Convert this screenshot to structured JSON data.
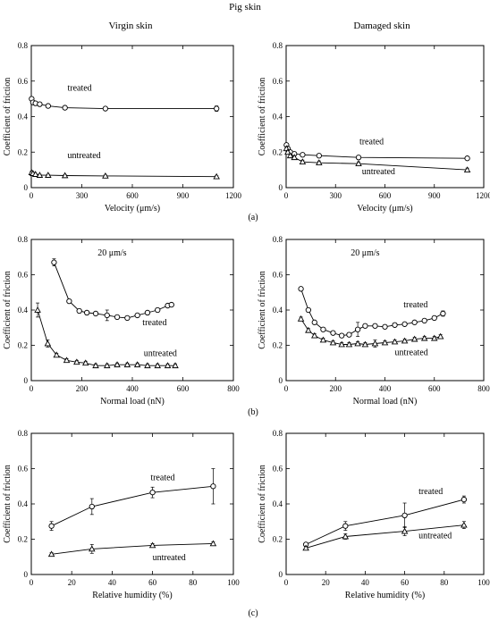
{
  "figure": {
    "title": "Pig skin",
    "column_titles": [
      "Virgin skin",
      "Damaged skin"
    ],
    "row_labels": [
      "(a)",
      "(b)",
      "(c)"
    ]
  },
  "chart_data": [
    {
      "id": "a-left",
      "type": "line",
      "row": 0,
      "col": 0,
      "xlabel": "Velocity (μm/s)",
      "ylabel": "Coefficient of friction",
      "xlim": [
        0,
        1200
      ],
      "ylim": [
        0,
        0.8
      ],
      "xticks": [
        0,
        300,
        600,
        900,
        1200
      ],
      "yticks": [
        0,
        0.2,
        0.4,
        0.6,
        0.8
      ],
      "annotation": "",
      "series": [
        {
          "label": "treated",
          "marker": "circle",
          "x": [
            2,
            10,
            25,
            50,
            100,
            200,
            440,
            1100
          ],
          "y": [
            0.5,
            0.48,
            0.475,
            0.47,
            0.46,
            0.45,
            0.445,
            0.445
          ],
          "err": [
            0.01,
            0.01,
            0.01,
            0.01,
            0.01,
            0.01,
            0.01,
            0.015
          ],
          "label_at": [
            215,
            0.545
          ]
        },
        {
          "label": "untreated",
          "marker": "triangle",
          "x": [
            2,
            10,
            25,
            50,
            100,
            200,
            440,
            1100
          ],
          "y": [
            0.085,
            0.08,
            0.075,
            0.07,
            0.07,
            0.068,
            0.066,
            0.062
          ],
          "err": [
            0.008,
            0.006,
            0.005,
            0.005,
            0.005,
            0.005,
            0.005,
            0.005
          ],
          "label_at": [
            215,
            0.165
          ]
        }
      ]
    },
    {
      "id": "a-right",
      "type": "line",
      "row": 0,
      "col": 1,
      "xlabel": "Velocity (μm/s)",
      "ylabel": "Coefficient of friction",
      "xlim": [
        0,
        1200
      ],
      "ylim": [
        0,
        0.8
      ],
      "xticks": [
        0,
        300,
        600,
        900,
        1200
      ],
      "yticks": [
        0,
        0.2,
        0.4,
        0.6,
        0.8
      ],
      "annotation": "",
      "series": [
        {
          "label": "treated",
          "marker": "circle",
          "x": [
            2,
            10,
            25,
            50,
            100,
            200,
            440,
            1100
          ],
          "y": [
            0.24,
            0.22,
            0.2,
            0.19,
            0.185,
            0.18,
            0.17,
            0.165
          ],
          "err": [
            0.01,
            0.01,
            0.01,
            0.01,
            0.01,
            0.01,
            0.01,
            0.01
          ],
          "label_at": [
            445,
            0.245
          ]
        },
        {
          "label": "untreated",
          "marker": "triangle",
          "x": [
            2,
            10,
            25,
            50,
            100,
            200,
            440,
            1100
          ],
          "y": [
            0.22,
            0.2,
            0.18,
            0.17,
            0.145,
            0.14,
            0.135,
            0.1
          ],
          "err": [
            0.01,
            0.01,
            0.01,
            0.01,
            0.01,
            0.01,
            0.01,
            0.01
          ],
          "label_at": [
            460,
            0.075
          ]
        }
      ]
    },
    {
      "id": "b-left",
      "type": "line",
      "row": 1,
      "col": 0,
      "xlabel": "Normal load (nN)",
      "ylabel": "Coefficient of friction",
      "xlim": [
        0,
        800
      ],
      "ylim": [
        0,
        0.8
      ],
      "xticks": [
        0,
        200,
        400,
        600,
        800
      ],
      "yticks": [
        0,
        0.2,
        0.4,
        0.6,
        0.8
      ],
      "annotation": "20 μm/s",
      "series": [
        {
          "label": "treated",
          "marker": "circle",
          "x": [
            90,
            150,
            190,
            220,
            255,
            300,
            340,
            380,
            420,
            460,
            500,
            540,
            555
          ],
          "y": [
            0.67,
            0.45,
            0.395,
            0.385,
            0.38,
            0.37,
            0.36,
            0.355,
            0.37,
            0.385,
            0.4,
            0.425,
            0.43
          ],
          "err": [
            0.02,
            0.01,
            0.01,
            0.01,
            0.01,
            0.03,
            0.01,
            0.01,
            0.01,
            0.01,
            0.01,
            0.01,
            0.01
          ],
          "label_at": [
            440,
            0.315
          ]
        },
        {
          "label": "untreated",
          "marker": "triangle",
          "x": [
            25,
            65,
            100,
            140,
            180,
            215,
            255,
            300,
            340,
            380,
            420,
            460,
            500,
            540,
            570
          ],
          "y": [
            0.4,
            0.21,
            0.145,
            0.115,
            0.105,
            0.1,
            0.085,
            0.085,
            0.09,
            0.09,
            0.09,
            0.085,
            0.085,
            0.085,
            0.085
          ],
          "err": [
            0.04,
            0.02,
            0.01,
            0.01,
            0.01,
            0.01,
            0.01,
            0.01,
            0.01,
            0.01,
            0.01,
            0.01,
            0.01,
            0.01,
            0.01
          ],
          "label_at": [
            445,
            0.14
          ]
        }
      ]
    },
    {
      "id": "b-right",
      "type": "line",
      "row": 1,
      "col": 1,
      "xlabel": "Normal load (nN)",
      "ylabel": "Coefficient of friction",
      "xlim": [
        0,
        800
      ],
      "ylim": [
        0,
        0.8
      ],
      "xticks": [
        0,
        200,
        400,
        600,
        800
      ],
      "yticks": [
        0,
        0.2,
        0.4,
        0.6,
        0.8
      ],
      "annotation": "20 μm/s",
      "series": [
        {
          "label": "treated",
          "marker": "circle",
          "x": [
            60,
            90,
            115,
            150,
            190,
            225,
            255,
            290,
            320,
            360,
            400,
            440,
            480,
            520,
            560,
            600,
            635
          ],
          "y": [
            0.52,
            0.4,
            0.33,
            0.29,
            0.27,
            0.255,
            0.26,
            0.29,
            0.31,
            0.31,
            0.305,
            0.315,
            0.32,
            0.33,
            0.34,
            0.355,
            0.38
          ],
          "err": [
            0.01,
            0.01,
            0.01,
            0.01,
            0.01,
            0.01,
            0.01,
            0.04,
            0.01,
            0.01,
            0.01,
            0.01,
            0.01,
            0.01,
            0.01,
            0.01,
            0.015
          ],
          "label_at": [
            475,
            0.415
          ]
        },
        {
          "label": "untreated",
          "marker": "triangle",
          "x": [
            60,
            90,
            115,
            150,
            190,
            225,
            255,
            290,
            320,
            360,
            400,
            440,
            480,
            520,
            560,
            600,
            625
          ],
          "y": [
            0.35,
            0.285,
            0.255,
            0.23,
            0.215,
            0.205,
            0.205,
            0.21,
            0.205,
            0.21,
            0.215,
            0.22,
            0.225,
            0.235,
            0.24,
            0.24,
            0.25
          ],
          "err": [
            0.01,
            0.01,
            0.01,
            0.01,
            0.01,
            0.01,
            0.01,
            0.01,
            0.01,
            0.02,
            0.01,
            0.01,
            0.01,
            0.01,
            0.01,
            0.01,
            0.01
          ],
          "label_at": [
            440,
            0.145
          ]
        }
      ]
    },
    {
      "id": "c-left",
      "type": "line",
      "row": 2,
      "col": 0,
      "xlabel": "Relative humidity (%)",
      "ylabel": "Coefficient of friction",
      "xlim": [
        0,
        100
      ],
      "ylim": [
        0,
        0.8
      ],
      "xticks": [
        0,
        20,
        40,
        60,
        80,
        100
      ],
      "yticks": [
        0,
        0.2,
        0.4,
        0.6,
        0.8
      ],
      "annotation": "",
      "series": [
        {
          "label": "treated",
          "marker": "circle",
          "x": [
            10,
            30,
            60,
            90
          ],
          "y": [
            0.275,
            0.385,
            0.465,
            0.5
          ],
          "err": [
            0.025,
            0.045,
            0.03,
            0.1
          ],
          "label_at": [
            59,
            0.535
          ]
        },
        {
          "label": "untreated",
          "marker": "triangle",
          "x": [
            10,
            30,
            60,
            90
          ],
          "y": [
            0.115,
            0.145,
            0.165,
            0.175
          ],
          "err": [
            0.008,
            0.025,
            0.01,
            0.01
          ],
          "label_at": [
            60,
            0.08
          ]
        }
      ]
    },
    {
      "id": "c-right",
      "type": "line",
      "row": 2,
      "col": 1,
      "xlabel": "Relative humidity (%)",
      "ylabel": "Coefficient of friction",
      "xlim": [
        0,
        100
      ],
      "ylim": [
        0,
        0.8
      ],
      "xticks": [
        0,
        20,
        40,
        60,
        80,
        100
      ],
      "yticks": [
        0,
        0.2,
        0.4,
        0.6,
        0.8
      ],
      "annotation": "",
      "series": [
        {
          "label": "treated",
          "marker": "circle",
          "x": [
            10,
            30,
            60,
            90
          ],
          "y": [
            0.17,
            0.275,
            0.335,
            0.425
          ],
          "err": [
            0.01,
            0.025,
            0.07,
            0.02
          ],
          "label_at": [
            67,
            0.455
          ]
        },
        {
          "label": "untreated",
          "marker": "triangle",
          "x": [
            10,
            30,
            60,
            90
          ],
          "y": [
            0.15,
            0.215,
            0.245,
            0.28
          ],
          "err": [
            0.01,
            0.015,
            0.025,
            0.02
          ],
          "label_at": [
            67,
            0.205
          ]
        }
      ]
    }
  ]
}
